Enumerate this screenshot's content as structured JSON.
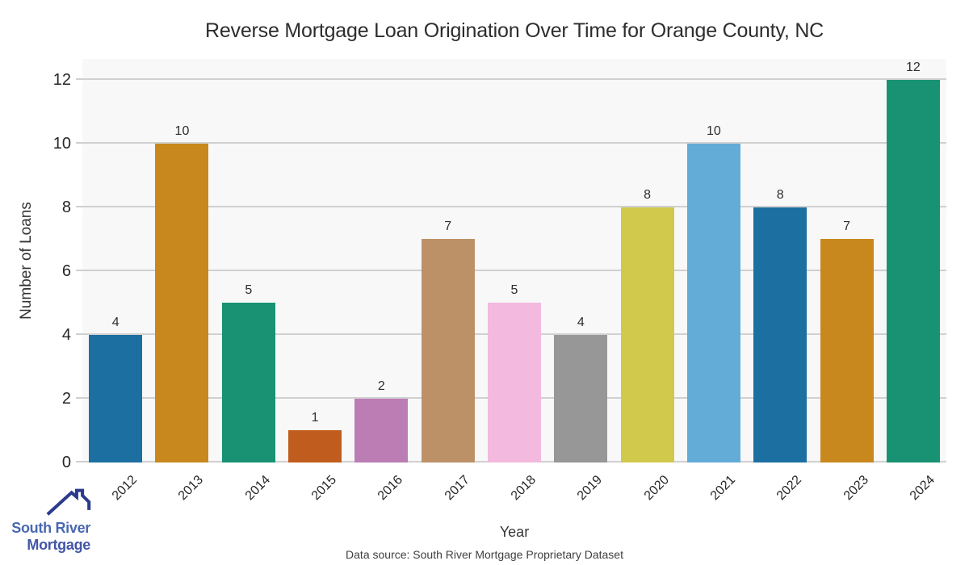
{
  "chart_data": {
    "type": "bar",
    "title": "Reverse Mortgage Loan Origination Over Time for Orange County, NC",
    "xlabel": "Year",
    "ylabel": "Number of Loans",
    "categories": [
      "2012",
      "2013",
      "2014",
      "2015",
      "2016",
      "2017",
      "2018",
      "2019",
      "2020",
      "2021",
      "2022",
      "2023",
      "2024"
    ],
    "values": [
      4,
      10,
      5,
      1,
      2,
      7,
      5,
      4,
      8,
      10,
      8,
      7,
      12
    ],
    "yticks": [
      0,
      2,
      4,
      6,
      8,
      10,
      12
    ],
    "ylim": [
      0,
      12.66
    ],
    "grid": true,
    "legend": false,
    "bar_labels_shown": true,
    "bar_colors": [
      "#1b6fa1",
      "#c8881d",
      "#189272",
      "#c05d1e",
      "#bc7db5",
      "#bd9168",
      "#f3b9df",
      "#979797",
      "#d0c94b",
      "#63acd7",
      "#1b6fa1",
      "#c8881d",
      "#189272"
    ]
  },
  "footer": {
    "data_source": "Data source: South River Mortgage Proprietary Dataset"
  },
  "logo": {
    "line1": "South River",
    "line2": "Mortgage",
    "line1_color": "#4a68b0",
    "line2_color": "#4356a7",
    "roof_color": "#2c3a8e"
  },
  "theme": {
    "plot_bg": "#f8f8f8",
    "gridline": "#d0d0d0",
    "tick_label": "#262626",
    "title_color": "#2d2d2d",
    "bar_value_label": "#2e2e2e"
  }
}
